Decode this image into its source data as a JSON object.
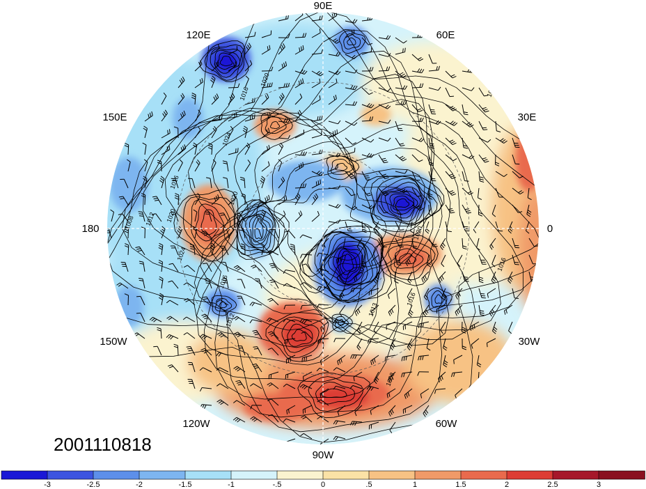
{
  "map": {
    "projection": "north-polar-stereographic",
    "center_label_hint": "north-pole",
    "longitude_labels": {
      "e90": "90E",
      "e120": "120E",
      "e60": "60E",
      "e150": "150E",
      "e30": "30E",
      "w180": "180",
      "e0": "0",
      "w150": "150W",
      "w30": "30W",
      "w120": "120W",
      "w60": "60W",
      "w90": "90W"
    },
    "timestamp": "2001110818",
    "contour_labels": [
      "1016",
      "1012",
      "1008",
      "1020",
      "1024",
      "1020",
      "1016",
      "1012",
      "1020",
      "1016",
      "1024",
      "1020",
      "1016",
      "1008",
      "1012",
      "1020",
      "1016",
      "1013"
    ],
    "anomaly_centers": [
      {
        "kind": "negative",
        "strength": -3,
        "region": "northeast-siberia-120E"
      },
      {
        "kind": "negative",
        "strength": -2,
        "region": "central-siberia-90E"
      },
      {
        "kind": "negative",
        "strength": -3,
        "region": "barents-kara"
      },
      {
        "kind": "negative",
        "strength": -3,
        "region": "hudson-bay"
      },
      {
        "kind": "positive",
        "strength": 2,
        "region": "alaska"
      },
      {
        "kind": "positive",
        "strength": 2.5,
        "region": "north-america-south"
      },
      {
        "kind": "positive",
        "strength": 1.5,
        "region": "greenland-iceland"
      },
      {
        "kind": "positive",
        "strength": 1,
        "region": "eastern-siberia"
      },
      {
        "kind": "positive",
        "strength": 1.5,
        "region": "west-africa-30E"
      }
    ],
    "colors": {
      "neg3": "#1a18d6",
      "neg25": "#3c54e0",
      "neg2": "#5d8fea",
      "neg15": "#7db5f0",
      "neg1": "#a7e0f7",
      "neg05": "#d5f3fb",
      "pos0": "#fbf3cf",
      "pos05": "#fbe2a6",
      "pos1": "#f7c284",
      "pos15": "#f09a68",
      "pos2": "#e96a4d",
      "pos25": "#dd3d35",
      "pos3": "#a6182a"
    }
  },
  "colorbar": {
    "ticks": [
      "-3",
      "-2.5",
      "-2",
      "-1.5",
      "-1",
      "-.5",
      "0",
      ".5",
      "1",
      "1.5",
      "2",
      "2.5",
      "3"
    ],
    "colors": [
      "#1a18d6",
      "#3c54e0",
      "#5d8fea",
      "#7db5f0",
      "#a7e0f7",
      "#d5f3fb",
      "#fbf3cf",
      "#fbe2a6",
      "#f7c284",
      "#f09a68",
      "#e96a4d",
      "#dd3d35",
      "#a6182a",
      "#8a1020"
    ]
  }
}
